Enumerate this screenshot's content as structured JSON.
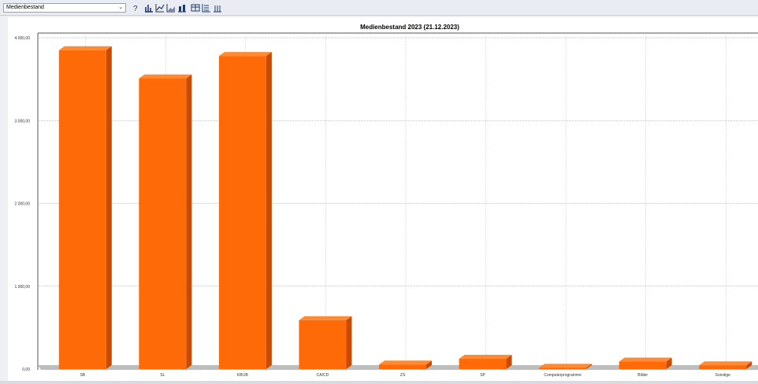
{
  "toolbar": {
    "dataset_select": "Medienbestand",
    "buttons": [
      {
        "name": "help-icon"
      },
      {
        "name": "bar-chart-icon"
      },
      {
        "name": "line-chart-icon"
      },
      {
        "name": "area-chart-icon"
      },
      {
        "name": "stacked-chart-icon"
      },
      {
        "name": "table-view-icon"
      },
      {
        "name": "list-view-icon"
      },
      {
        "name": "column-view-icon"
      }
    ]
  },
  "colors": {
    "bar_front": "#ff6a08",
    "bar_side": "#c94a00",
    "bar_top": "#ff8a33",
    "floor": "#bdbdbd",
    "grid": "#8a8a8a"
  },
  "chart_data": {
    "type": "bar",
    "title": "Medienbestand 2023 (21.12.2023)",
    "categories": [
      "SB",
      "SL",
      "KB/JB",
      "CA/CD",
      "ZS",
      "SP",
      "Computerprogramme",
      "Bilder",
      "Sonstige"
    ],
    "values": [
      3850,
      3510,
      3780,
      590,
      55,
      125,
      15,
      90,
      45
    ],
    "ylim": [
      0,
      4000
    ],
    "yticks": [
      "0,00",
      "1.000,00",
      "2.000,00",
      "3.000,00",
      "4.000,00"
    ],
    "xlabel": "",
    "ylabel": "",
    "grid": true,
    "legend": "none"
  }
}
